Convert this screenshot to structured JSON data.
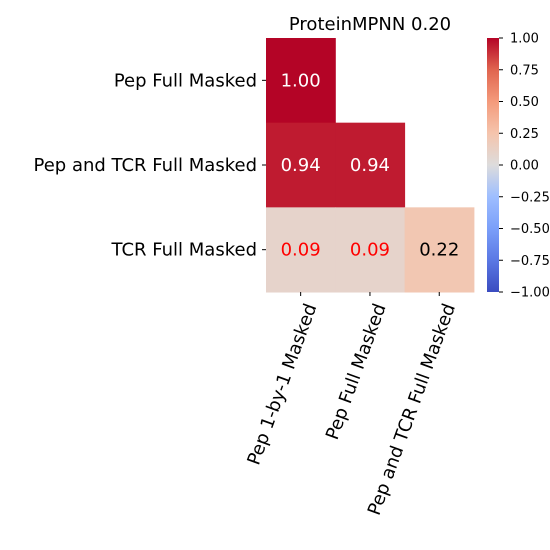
{
  "chart_data": {
    "type": "heatmap",
    "title": "ProteinMPNN 0.20",
    "rows": [
      "Pep Full Masked",
      "Pep and TCR Full Masked",
      "TCR Full Masked"
    ],
    "columns": [
      "Pep 1-by-1 Masked",
      "Pep Full Masked",
      "Pep and TCR Full Masked"
    ],
    "values": [
      [
        1.0,
        null,
        null
      ],
      [
        0.94,
        0.94,
        null
      ],
      [
        0.09,
        0.09,
        0.22
      ]
    ],
    "cell_labels": [
      [
        "1.00",
        null,
        null
      ],
      [
        "0.94",
        "0.94",
        null
      ],
      [
        "0.09",
        "0.09",
        "0.22"
      ]
    ],
    "highlight_label_color": "#ff0000",
    "highlighted_cells": [
      [
        2,
        0
      ],
      [
        2,
        1
      ]
    ],
    "colormap": "coolwarm",
    "vmin": -1.0,
    "vmax": 1.0,
    "colorbar_ticks": [
      "1.00",
      "0.75",
      "0.50",
      "0.25",
      "0.00",
      "−0.25",
      "−0.50",
      "−0.75",
      "−1.00"
    ],
    "colorbar_tick_values": [
      1.0,
      0.75,
      0.5,
      0.25,
      0.0,
      -0.25,
      -0.5,
      -0.75,
      -1.0
    ],
    "mask": "upper-triangle"
  }
}
